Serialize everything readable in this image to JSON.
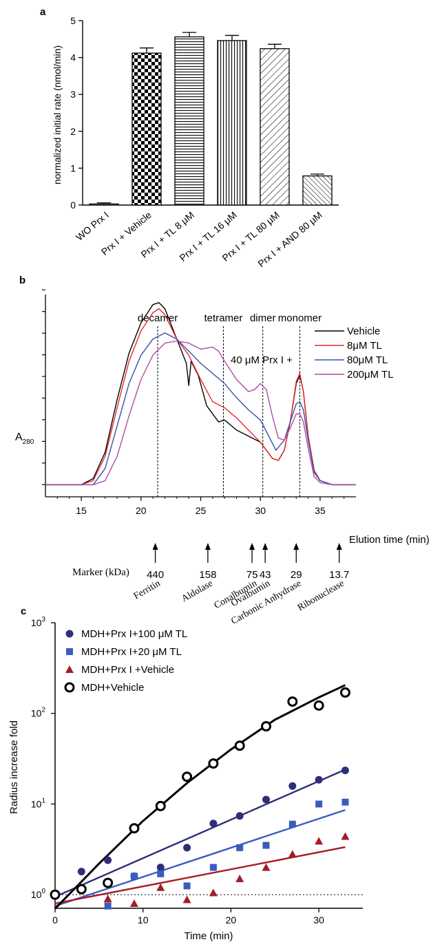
{
  "panels": {
    "a": {
      "label": "a"
    },
    "b": {
      "label": "b"
    },
    "c": {
      "label": "c"
    }
  },
  "chart_data": [
    {
      "type": "bar",
      "panel": "a",
      "ylabel": "normalized initial rate (nmol/min)",
      "ylim": [
        0,
        5
      ],
      "yticks": [
        "0",
        "1",
        "2",
        "3",
        "4",
        "5"
      ],
      "categories": [
        "WO Prx I",
        "Prx I + Vehicle",
        "Prx I + TL 8 μM",
        "Prx I + TL 16 μM",
        "Prx I + TL 80 μM",
        "Prx I + AND 80 μM"
      ],
      "values": [
        0.03,
        4.12,
        4.56,
        4.46,
        4.24,
        0.79
      ],
      "errors": [
        0.03,
        0.14,
        0.12,
        0.14,
        0.12,
        0.05
      ],
      "patterns": [
        "none",
        "checker",
        "horizontal",
        "vertical",
        "diagonal-up-wide",
        "diagonal-down"
      ]
    },
    {
      "type": "line",
      "panel": "b",
      "ylabel": "A",
      "ylabel_sub": "280",
      "xlabel": "Elution time (min)",
      "xlim": [
        12,
        38
      ],
      "xticks": [
        "15",
        "20",
        "25",
        "30",
        "35"
      ],
      "annotation": "40 μM Prx I +",
      "peak_markers": [
        {
          "label": "decamer",
          "x": 21.4
        },
        {
          "label": "tetramer",
          "x": 26.9
        },
        {
          "label": "dimer",
          "x": 30.2
        },
        {
          "label": "monomer",
          "x": 33.3
        }
      ],
      "series": [
        {
          "name": "Vehicle",
          "color": "#000000",
          "points": [
            [
              12,
              0.06
            ],
            [
              15,
              0.06
            ],
            [
              16,
              0.09
            ],
            [
              17,
              0.22
            ],
            [
              18,
              0.48
            ],
            [
              19,
              0.71
            ],
            [
              20,
              0.86
            ],
            [
              21,
              0.95
            ],
            [
              21.5,
              0.96
            ],
            [
              22,
              0.93
            ],
            [
              23,
              0.78
            ],
            [
              23.8,
              0.66
            ],
            [
              24,
              0.55
            ],
            [
              24.2,
              0.67
            ],
            [
              24.8,
              0.6
            ],
            [
              25.5,
              0.45
            ],
            [
              26.5,
              0.37
            ],
            [
              27,
              0.38
            ],
            [
              28,
              0.33
            ],
            [
              29,
              0.3
            ],
            [
              30,
              0.27
            ],
            [
              31,
              0.19
            ],
            [
              31.5,
              0.18
            ],
            [
              32,
              0.23
            ],
            [
              32.5,
              0.37
            ],
            [
              33,
              0.56
            ],
            [
              33.3,
              0.6
            ],
            [
              33.6,
              0.52
            ],
            [
              34,
              0.3
            ],
            [
              34.5,
              0.13
            ],
            [
              35,
              0.08
            ],
            [
              36,
              0.06
            ],
            [
              38,
              0.06
            ]
          ]
        },
        {
          "name": "8μM TL",
          "color": "#e8262b",
          "points": [
            [
              12,
              0.06
            ],
            [
              15,
              0.06
            ],
            [
              16,
              0.08
            ],
            [
              17,
              0.2
            ],
            [
              18,
              0.44
            ],
            [
              19,
              0.67
            ],
            [
              20,
              0.82
            ],
            [
              21,
              0.91
            ],
            [
              21.5,
              0.93
            ],
            [
              22,
              0.9
            ],
            [
              23,
              0.78
            ],
            [
              24,
              0.7
            ],
            [
              25,
              0.58
            ],
            [
              26,
              0.47
            ],
            [
              27,
              0.44
            ],
            [
              28,
              0.39
            ],
            [
              29,
              0.33
            ],
            [
              30,
              0.27
            ],
            [
              31,
              0.19
            ],
            [
              31.5,
              0.18
            ],
            [
              32,
              0.23
            ],
            [
              32.5,
              0.37
            ],
            [
              33,
              0.57
            ],
            [
              33.3,
              0.61
            ],
            [
              33.6,
              0.52
            ],
            [
              34,
              0.3
            ],
            [
              34.5,
              0.13
            ],
            [
              35,
              0.08
            ],
            [
              36,
              0.06
            ],
            [
              38,
              0.06
            ]
          ]
        },
        {
          "name": "80μM TL",
          "color": "#3a4ea5",
          "points": [
            [
              12,
              0.06
            ],
            [
              16,
              0.06
            ],
            [
              17,
              0.14
            ],
            [
              18,
              0.35
            ],
            [
              19,
              0.56
            ],
            [
              20,
              0.7
            ],
            [
              21,
              0.78
            ],
            [
              22,
              0.81
            ],
            [
              23,
              0.78
            ],
            [
              24,
              0.72
            ],
            [
              25,
              0.66
            ],
            [
              26,
              0.61
            ],
            [
              27,
              0.56
            ],
            [
              28,
              0.49
            ],
            [
              29,
              0.43
            ],
            [
              30,
              0.38
            ],
            [
              30.7,
              0.3
            ],
            [
              31.3,
              0.23
            ],
            [
              32,
              0.28
            ],
            [
              32.5,
              0.37
            ],
            [
              33,
              0.46
            ],
            [
              33.3,
              0.47
            ],
            [
              33.6,
              0.43
            ],
            [
              34,
              0.28
            ],
            [
              34.5,
              0.12
            ],
            [
              35,
              0.08
            ],
            [
              36,
              0.06
            ],
            [
              38,
              0.06
            ]
          ]
        },
        {
          "name": "200μM TL",
          "color": "#b04aa8",
          "points": [
            [
              12,
              0.06
            ],
            [
              16,
              0.06
            ],
            [
              17,
              0.08
            ],
            [
              18,
              0.2
            ],
            [
              19,
              0.4
            ],
            [
              20,
              0.58
            ],
            [
              21,
              0.7
            ],
            [
              22,
              0.76
            ],
            [
              23,
              0.77
            ],
            [
              24,
              0.76
            ],
            [
              25,
              0.73
            ],
            [
              26,
              0.74
            ],
            [
              26.5,
              0.72
            ],
            [
              27,
              0.67
            ],
            [
              28,
              0.58
            ],
            [
              29,
              0.52
            ],
            [
              29.5,
              0.53
            ],
            [
              30,
              0.56
            ],
            [
              30.5,
              0.53
            ],
            [
              31,
              0.4
            ],
            [
              31.5,
              0.29
            ],
            [
              32,
              0.28
            ],
            [
              32.5,
              0.34
            ],
            [
              33,
              0.41
            ],
            [
              33.3,
              0.41
            ],
            [
              33.6,
              0.37
            ],
            [
              34,
              0.24
            ],
            [
              34.5,
              0.1
            ],
            [
              35,
              0.07
            ],
            [
              36,
              0.06
            ],
            [
              38,
              0.06
            ]
          ]
        }
      ],
      "markers_title": "Marker (kDa)",
      "markers": [
        {
          "name": "Ferritin",
          "kda": "440",
          "x": 21.2
        },
        {
          "name": "Aldolase",
          "kda": "158",
          "x": 25.6
        },
        {
          "name": "Conalbumin",
          "kda": "75",
          "x": 29.3
        },
        {
          "name": "Ovalbumin",
          "kda": "43",
          "x": 30.4
        },
        {
          "name": "Carbonic Anhydrase",
          "kda": "29",
          "x": 33.0
        },
        {
          "name": "Ribonuclease",
          "kda": "13.7",
          "x": 36.6
        }
      ]
    },
    {
      "type": "scatter",
      "panel": "c",
      "ylabel": "Radius increase fold",
      "xlabel": "Time (min)",
      "xlim": [
        0,
        35
      ],
      "ylim_log10": [
        -0.15,
        3
      ],
      "scale": "log",
      "xticks": [
        "0",
        "10",
        "20",
        "30"
      ],
      "yticks": [
        {
          "base": "10",
          "exp": "0",
          "value": 1
        },
        {
          "base": "10",
          "exp": "1",
          "value": 10
        },
        {
          "base": "10",
          "exp": "2",
          "value": 100
        },
        {
          "base": "10",
          "exp": "3",
          "value": 1000
        }
      ],
      "reference_line": 1,
      "series": [
        {
          "name": "MDH+Prx I+100 μM TL",
          "marker": "circle",
          "color": "#2e2e7a",
          "x": [
            0,
            3,
            6,
            9,
            12,
            15,
            18,
            21,
            24,
            27,
            30,
            33
          ],
          "y": [
            1.0,
            1.8,
            2.4,
            1.6,
            2.0,
            3.3,
            6.1,
            7.4,
            11.2,
            15.8,
            18.5,
            23.5
          ],
          "fit": [
            [
              0,
              0.95
            ],
            [
              33,
              24
            ]
          ]
        },
        {
          "name": "MDH+Prx I+20 μM TL",
          "marker": "square",
          "color": "#3a5cbf",
          "x": [
            0,
            3,
            6,
            9,
            12,
            15,
            18,
            21,
            24,
            27,
            30,
            33
          ],
          "y": [
            1.0,
            1.2,
            0.75,
            1.6,
            1.7,
            1.25,
            2.0,
            3.3,
            3.5,
            6.0,
            10.0,
            10.5
          ],
          "fit": [
            [
              0,
              0.75
            ],
            [
              33,
              8.6
            ]
          ]
        },
        {
          "name": "MDH+Prx I +Vehicle",
          "marker": "triangle",
          "color": "#a51c24",
          "x": [
            0,
            3,
            6,
            9,
            12,
            15,
            18,
            21,
            24,
            27,
            30,
            33
          ],
          "y": [
            1.0,
            1.15,
            0.9,
            0.8,
            1.2,
            0.88,
            1.05,
            1.5,
            2.0,
            2.8,
            3.9,
            4.4
          ],
          "fit": [
            [
              0,
              0.8
            ],
            [
              33,
              3.35
            ]
          ]
        },
        {
          "name": "MDH+Vehicle",
          "marker": "ring",
          "color": "#000000",
          "x": [
            0,
            3,
            6,
            9,
            12,
            15,
            18,
            21,
            24,
            27,
            30,
            33
          ],
          "y": [
            1.0,
            1.15,
            1.35,
            5.4,
            9.5,
            20.0,
            28.0,
            44.0,
            72.0,
            135,
            122,
            170
          ],
          "fit_curve": [
            [
              0,
              0.7
            ],
            [
              5,
              2.2
            ],
            [
              10,
              6.5
            ],
            [
              15,
              17
            ],
            [
              20,
              40
            ],
            [
              25,
              85
            ],
            [
              30,
              150
            ],
            [
              33,
              205
            ]
          ]
        }
      ]
    }
  ]
}
